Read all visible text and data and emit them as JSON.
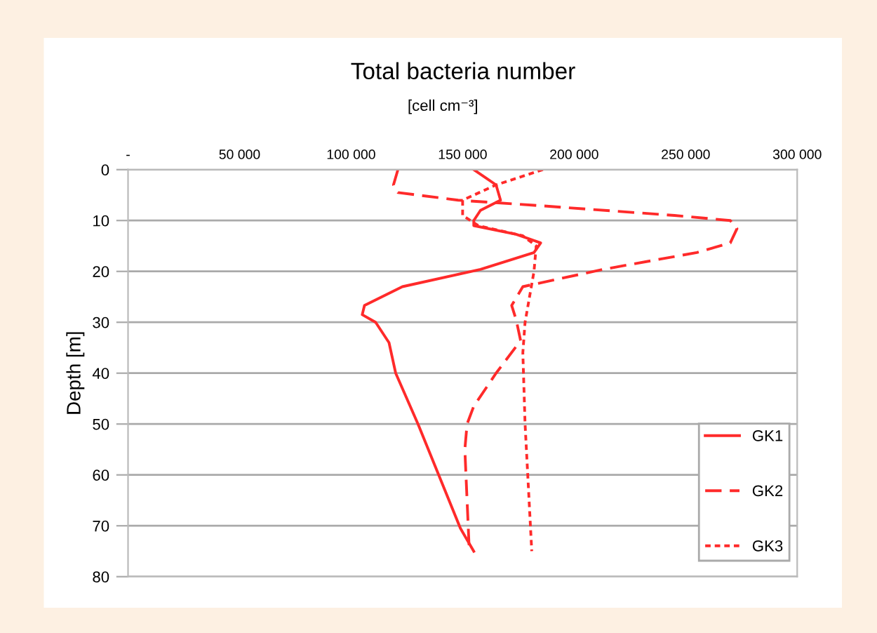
{
  "chart_data": {
    "type": "line",
    "title": "Total bacteria number",
    "subtitle": "[cell cm⁻³]",
    "ylabel": "Depth [m]",
    "xlim": [
      0,
      300000
    ],
    "xticks": [
      {
        "value": 0,
        "label": "-"
      },
      {
        "value": 50000,
        "label": "50 000"
      },
      {
        "value": 100000,
        "label": "100 000"
      },
      {
        "value": 150000,
        "label": "150 000"
      },
      {
        "value": 200000,
        "label": "200 000"
      },
      {
        "value": 250000,
        "label": "250 000"
      },
      {
        "value": 300000,
        "label": "300 000"
      }
    ],
    "orientation": "horizontal",
    "ylim": [
      80,
      0
    ],
    "yticks": [
      0,
      10,
      20,
      30,
      40,
      50,
      60,
      70,
      80
    ],
    "grid": "y",
    "legend": "bottom right",
    "series": [
      {
        "name": "GK1",
        "color": "#ff2a2a",
        "line_style": "solid",
        "values": [
          155000,
          165000,
          167000,
          158000,
          155000,
          155000,
          174000,
          185000,
          182000,
          158000,
          123000,
          106000,
          105000,
          111000,
          117000,
          120000,
          130000,
          149000,
          155000
        ],
        "x": [
          0,
          3,
          6,
          8,
          10,
          11,
          12.7,
          14.4,
          16.3,
          19.6,
          23,
          26.7,
          28.5,
          30,
          34,
          40,
          50,
          70.5,
          75
        ]
      },
      {
        "name": "GK2",
        "color": "#ff2a2a",
        "line_style": "dashed",
        "values": [
          121000,
          119000,
          121000,
          148000,
          182000,
          245000,
          270000,
          273000,
          270000,
          255000,
          213000,
          177000,
          172000,
          174000,
          176000,
          165000,
          155000,
          152000,
          151000,
          153000
        ],
        "x": [
          0,
          3,
          4.5,
          6,
          7,
          9,
          10,
          11.6,
          14.4,
          16.3,
          19.6,
          23,
          26.7,
          29.5,
          33.6,
          40,
          46.5,
          50,
          55,
          75
        ]
      },
      {
        "name": "GK3",
        "color": "#ff2a2a",
        "line_style": "dotted",
        "values": [
          186000,
          165000,
          150000,
          150000,
          157000,
          177000,
          183000,
          182000,
          178000,
          177000,
          178000,
          181000
        ],
        "x": [
          0,
          3,
          6,
          9,
          11,
          13,
          15,
          20,
          30,
          36,
          50,
          75
        ]
      }
    ]
  }
}
